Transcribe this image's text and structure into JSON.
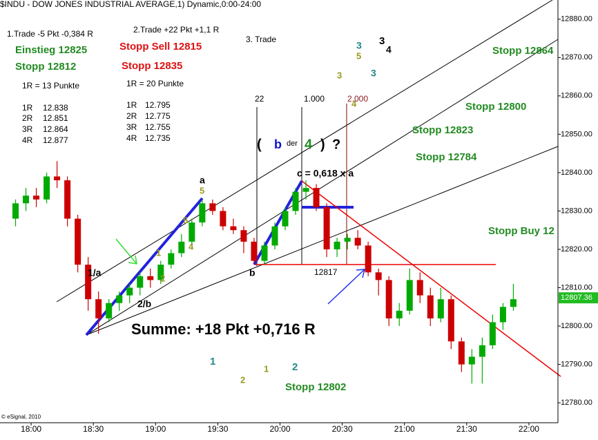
{
  "chart_data": {
    "type": "candlestick",
    "title": "$INDU - DOW JONES INDUSTRIAL AVERAGE,1) Dynamic,0:00-24:00",
    "x": [
      1070,
      1075,
      1080,
      1085,
      1090,
      1095,
      1100,
      1105,
      1110,
      1115,
      1120,
      1125,
      1130,
      1135,
      1140,
      1145,
      1150,
      1155,
      1160,
      1165,
      1170,
      1175,
      1180,
      1185,
      1190,
      1195,
      1200,
      1205,
      1210,
      1215,
      1220,
      1225,
      1230,
      1235,
      1240,
      1245,
      1250,
      1255,
      1260,
      1265,
      1270,
      1275,
      1280,
      1285,
      1290,
      1295,
      1300,
      1305,
      1310
    ],
    "open": [
      12828,
      12832,
      12834,
      12833,
      12839,
      12838,
      12828,
      12816,
      12807,
      12802,
      12806,
      12808,
      12810,
      12813,
      12812,
      12816,
      12819,
      12822,
      12827,
      12832,
      12830,
      12826,
      12825,
      12822,
      12817,
      12821,
      12826,
      12830,
      12835,
      12836,
      12831,
      12820,
      12822,
      12823,
      12821,
      12814,
      12812,
      12802,
      12804,
      12812,
      12808,
      12802,
      12807,
      12796,
      12790,
      12792,
      12795,
      12801,
      12805
    ],
    "high": [
      12833,
      12836,
      12836,
      12840,
      12843,
      12839,
      12829,
      12818,
      12809,
      12807,
      12809,
      12811,
      12814,
      12815,
      12817,
      12820,
      12824,
      12828,
      12833,
      12833,
      12831,
      12828,
      12826,
      12823,
      12822,
      12827,
      12831,
      12836,
      12838,
      12837,
      12832,
      12823,
      12824,
      12825,
      12822,
      12815,
      12813,
      12806,
      12815,
      12814,
      12810,
      12810,
      12808,
      12797,
      12794,
      12797,
      12803,
      12806,
      12811
    ],
    "low": [
      12826,
      12830,
      12831,
      12832,
      12836,
      12826,
      12814,
      12804,
      12798,
      12801,
      12804,
      12806,
      12808,
      12810,
      12811,
      12815,
      12818,
      12821,
      12826,
      12829,
      12825,
      12824,
      12819,
      12816,
      12816,
      12820,
      12825,
      12829,
      12833,
      12830,
      12818,
      12818,
      12820,
      12820,
      12813,
      12808,
      12800,
      12800,
      12803,
      12806,
      12800,
      12801,
      12794,
      12788,
      12785,
      12785,
      12794,
      12799,
      12804
    ],
    "close": [
      12832,
      12834,
      12833,
      12839,
      12838,
      12828,
      12816,
      12807,
      12802,
      12806,
      12808,
      12810,
      12813,
      12812,
      12816,
      12819,
      12822,
      12827,
      12832,
      12830,
      12826,
      12825,
      12822,
      12817,
      12821,
      12826,
      12830,
      12835,
      12836,
      12831,
      12820,
      12822,
      12823,
      12821,
      12814,
      12812,
      12802,
      12804,
      12812,
      12808,
      12802,
      12807,
      12796,
      12790,
      12792,
      12795,
      12801,
      12805,
      12807
    ],
    "up_color": "#00aa00",
    "down_color": "#cc0000",
    "xlim": [
      1065,
      1334
    ],
    "ylim": [
      12774.8,
      12885
    ],
    "xticks": [
      {
        "value": 1080,
        "label": "18:00"
      },
      {
        "value": 1110,
        "label": "18:30"
      },
      {
        "value": 1140,
        "label": "19:00"
      },
      {
        "value": 1170,
        "label": "19:30"
      },
      {
        "value": 1200,
        "label": "20:00"
      },
      {
        "value": 1230,
        "label": "20:30"
      },
      {
        "value": 1260,
        "label": "21:00"
      },
      {
        "value": 1290,
        "label": "21:30"
      },
      {
        "value": 1320,
        "label": "22:00"
      }
    ],
    "yticks": [
      {
        "value": 12780,
        "label": "12780.00"
      },
      {
        "value": 12790,
        "label": "12790.00"
      },
      {
        "value": 12800,
        "label": "12800.00"
      },
      {
        "value": 12810,
        "label": "12810.00"
      },
      {
        "value": 12820,
        "label": "12820.00"
      },
      {
        "value": 12830,
        "label": "12830.00"
      },
      {
        "value": 12840,
        "label": "12840.00"
      },
      {
        "value": 12850,
        "label": "12850.00"
      },
      {
        "value": 12860,
        "label": "12860.00"
      },
      {
        "value": 12870,
        "label": "12870.00"
      },
      {
        "value": 12880,
        "label": "12880.00"
      }
    ],
    "last_price": 12807.36,
    "last_price_color": "#22bb22",
    "grid": false,
    "annotations": [
      "1.Trade -5 Pkt -0,384 R",
      "Einstieg 12825",
      "Stopp 12812",
      "1R = 13 Punkte",
      "1R",
      "12.838",
      "2R",
      "12.851",
      "3R",
      "12.864",
      "4R",
      "12.877",
      "2.Trade +22 Pkt +1,1 R",
      "Stopp Sell 12815",
      "Stopp 12835",
      "1R =    20 Punkte",
      "1R",
      "12.795",
      "2R",
      "12.775",
      "3R",
      "12.755",
      "4R",
      "12.735",
      "3. Trade",
      "3",
      "5",
      "3",
      "4",
      "3",
      "3",
      "4",
      "22",
      "1.000",
      "2.000",
      "(",
      "b",
      "der",
      "4",
      ")",
      "?",
      "c = 0,618 x a",
      "a",
      "5",
      "5",
      "4",
      "1",
      "2",
      "1/a",
      "2/b",
      "b",
      "12817",
      "Summe: +18 Pkt +0,716 R",
      "1",
      "2",
      "1",
      "2",
      "Stopp 12802",
      "Stopp 12864",
      "Stopp 12800",
      "Stopp 12823",
      "Stopp 12784",
      "Stopp Buy 12",
      "© eSignal, 2010"
    ]
  }
}
